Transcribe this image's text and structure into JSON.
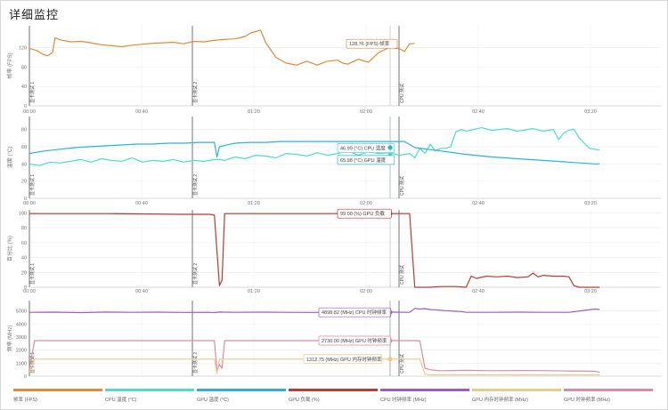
{
  "title": "详细监控",
  "time_ticks": [
    "00:00",
    "00:40",
    "01:20",
    "02:00",
    "02:40",
    "03:20"
  ],
  "markers": [
    "显卡测试 1",
    "显卡测试 2",
    "CPU 测试"
  ],
  "legend": [
    {
      "label": "帧率 (FPS)",
      "color": "#e08a3a"
    },
    {
      "label": "CPU 温度 (°C)",
      "color": "#4fdcc8"
    },
    {
      "label": "GPU 温度 (°C)",
      "color": "#2ab3d9"
    },
    {
      "label": "GPU 负载 (%)",
      "color": "#b83b34"
    },
    {
      "label": "CPU 时钟频率 (MHz)",
      "color": "#9a5cc6"
    },
    {
      "label": "GPU 内存时钟频率 (MHz)",
      "color": "#e8cc8a"
    },
    {
      "label": "GPU 时钟频率 (MHz)",
      "color": "#d98da2"
    }
  ],
  "chart_data": [
    {
      "type": "line",
      "ylabel": "帧率 (FPS)",
      "yticks": [
        "0",
        "40",
        "80",
        "120"
      ],
      "ylim": [
        0,
        165
      ],
      "xlim": [
        0,
        225
      ],
      "series": [
        {
          "name": "帧率",
          "color": "#e08a3a",
          "tooltip": "128.76 (FPS) 帧率",
          "x": [
            0,
            3,
            5,
            7,
            9,
            10,
            12,
            16,
            20,
            24,
            28,
            32,
            36,
            40,
            44,
            48,
            52,
            56,
            60,
            64,
            68,
            72,
            76,
            80,
            84,
            86,
            88,
            90,
            92,
            96,
            100,
            104,
            108,
            112,
            116,
            120,
            122,
            124,
            128,
            132,
            136,
            140,
            144,
            146,
            148,
            150
          ],
          "y": [
            118,
            114,
            107,
            103,
            110,
            140,
            136,
            132,
            133,
            130,
            126,
            124,
            122,
            125,
            127,
            129,
            130,
            131,
            128,
            133,
            132,
            135,
            137,
            138,
            143,
            150,
            153,
            156,
            130,
            100,
            88,
            84,
            92,
            84,
            92,
            94,
            88,
            86,
            96,
            90,
            110,
            120,
            118,
            112,
            128,
            128.76
          ]
        }
      ]
    },
    {
      "type": "line",
      "ylabel": "温度 (°C)",
      "yticks": [
        "0",
        "20",
        "40",
        "60",
        "80"
      ],
      "ylim": [
        0,
        95
      ],
      "xlim": [
        0,
        225
      ],
      "series": [
        {
          "name": "CPU 温度",
          "color": "#4fdcc8",
          "tooltip": "46.99 (°C) CPU 温度",
          "x": [
            0,
            4,
            8,
            12,
            16,
            20,
            24,
            28,
            32,
            36,
            40,
            44,
            48,
            52,
            56,
            60,
            64,
            68,
            72,
            74,
            76,
            80,
            84,
            88,
            92,
            96,
            100,
            104,
            108,
            112,
            116,
            120,
            124,
            128,
            132,
            136,
            140,
            144,
            148,
            150,
            152,
            154,
            156,
            158,
            160,
            162,
            164,
            166,
            168,
            170,
            176,
            180,
            186,
            190,
            196,
            200,
            204,
            206,
            208,
            210,
            212,
            214,
            218,
            222
          ],
          "y": [
            40,
            38,
            42,
            41,
            43,
            45,
            42,
            46,
            44,
            43,
            47,
            42,
            44,
            43,
            45,
            42,
            44,
            43,
            45,
            45,
            44,
            48,
            46,
            50,
            49,
            47,
            52,
            51,
            49,
            53,
            50,
            52,
            55,
            50,
            54,
            52,
            53,
            50,
            52,
            47,
            58,
            52,
            63,
            55,
            58,
            58,
            60,
            77,
            80,
            78,
            82,
            79,
            81,
            78,
            81,
            78,
            80,
            68,
            76,
            79,
            80,
            70,
            58,
            56
          ]
        },
        {
          "name": "GPU 温度",
          "color": "#2ab3d9",
          "tooltip": "65.98 (°C) GPU 温度",
          "x": [
            0,
            6,
            12,
            18,
            24,
            30,
            36,
            42,
            48,
            54,
            60,
            66,
            70,
            72,
            73,
            74,
            80,
            86,
            92,
            98,
            104,
            110,
            116,
            122,
            128,
            134,
            140,
            146,
            150,
            160,
            170,
            180,
            190,
            200,
            210,
            220,
            222
          ],
          "y": [
            52,
            55,
            57,
            59,
            60,
            61,
            62,
            63,
            63,
            64,
            64,
            65,
            65,
            65,
            48,
            60,
            64,
            65,
            65,
            66,
            66,
            66,
            66,
            66,
            66,
            66,
            66,
            66,
            59,
            55,
            51,
            48,
            46,
            44,
            42,
            40,
            40
          ]
        }
      ]
    },
    {
      "type": "line",
      "ylabel": "百分比 (%)",
      "yticks": [
        "0",
        "20",
        "40",
        "60",
        "80",
        "100"
      ],
      "ylim": [
        0,
        104
      ],
      "xlim": [
        0,
        225
      ],
      "series": [
        {
          "name": "GPU 负载",
          "color": "#b83b34",
          "tooltip": "99.00 (%) GPU 负载",
          "x": [
            0,
            30,
            60,
            70,
            72,
            74,
            75,
            76,
            78,
            100,
            130,
            148,
            150,
            152,
            156,
            160,
            166,
            170,
            172,
            174,
            178,
            182,
            186,
            190,
            194,
            196,
            198,
            200,
            204,
            208,
            210,
            212,
            214,
            216,
            218,
            222
          ],
          "y": [
            99,
            99,
            98,
            98,
            97,
            2,
            10,
            99,
            99,
            99,
            99,
            99,
            0,
            0,
            0,
            1,
            1,
            0,
            15,
            12,
            15,
            14,
            15,
            13,
            14,
            19,
            14,
            16,
            15,
            15,
            14,
            2,
            0,
            0,
            0,
            0
          ]
        }
      ]
    },
    {
      "type": "line",
      "ylabel": "频率 (MHz)",
      "yticks": [
        "0",
        "1000",
        "2000",
        "3000",
        "4000",
        "5000"
      ],
      "ylim": [
        0,
        5800
      ],
      "xlim": [
        0,
        225
      ],
      "series": [
        {
          "name": "CPU 时钟频率",
          "color": "#9a5cc6",
          "tooltip": "4898.82 (MHz) CPU 时钟频率",
          "x": [
            0,
            10,
            20,
            30,
            40,
            50,
            60,
            70,
            72,
            74,
            80,
            90,
            100,
            110,
            120,
            130,
            140,
            148,
            150,
            152,
            154,
            156,
            158,
            160,
            162,
            164,
            166,
            168,
            170,
            180,
            190,
            200,
            210,
            220,
            222
          ],
          "y": [
            4900,
            4910,
            4880,
            4920,
            4900,
            4910,
            4890,
            4900,
            4880,
            4920,
            4900,
            4910,
            4900,
            4890,
            4910,
            4900,
            4910,
            4898.82,
            5200,
            5150,
            5180,
            5120,
            5100,
            5060,
            5030,
            5010,
            4980,
            4960,
            4900,
            4900,
            4910,
            4900,
            4900,
            5150,
            5120
          ]
        },
        {
          "name": "GPU 时钟频率",
          "color": "#d98da2",
          "tooltip": "2730.00 (MHz) GPU 时钟频率",
          "x": [
            0,
            2,
            4,
            10,
            20,
            30,
            40,
            50,
            60,
            70,
            72,
            73,
            74,
            75,
            76,
            80,
            90,
            100,
            110,
            120,
            130,
            140,
            148,
            150,
            152,
            154,
            156,
            158,
            160,
            170,
            180,
            190,
            200,
            210,
            220,
            222
          ],
          "y": [
            500,
            2730,
            2730,
            2730,
            2730,
            2730,
            2730,
            2730,
            2730,
            2730,
            2730,
            400,
            900,
            600,
            2730,
            2730,
            2730,
            2730,
            2730,
            2730,
            2730,
            2730,
            2730,
            2730,
            2700,
            600,
            500,
            450,
            420,
            450,
            420,
            440,
            430,
            400,
            380,
            300
          ]
        },
        {
          "name": "GPU 内存时钟频率",
          "color": "#e8cc8a",
          "tooltip": "1312.75 (MHz) GPU 内存时钟频率",
          "x": [
            0,
            2,
            4,
            10,
            30,
            50,
            70,
            72,
            73,
            74,
            76,
            100,
            130,
            148,
            150,
            152,
            154,
            156,
            160,
            180,
            200,
            222
          ],
          "y": [
            300,
            1312,
            1312,
            1312,
            1312,
            1312,
            1312,
            1312,
            200,
            1312,
            1312,
            1312,
            1312,
            1312.75,
            1312,
            1312,
            150,
            100,
            100,
            100,
            100,
            100
          ]
        }
      ]
    }
  ]
}
